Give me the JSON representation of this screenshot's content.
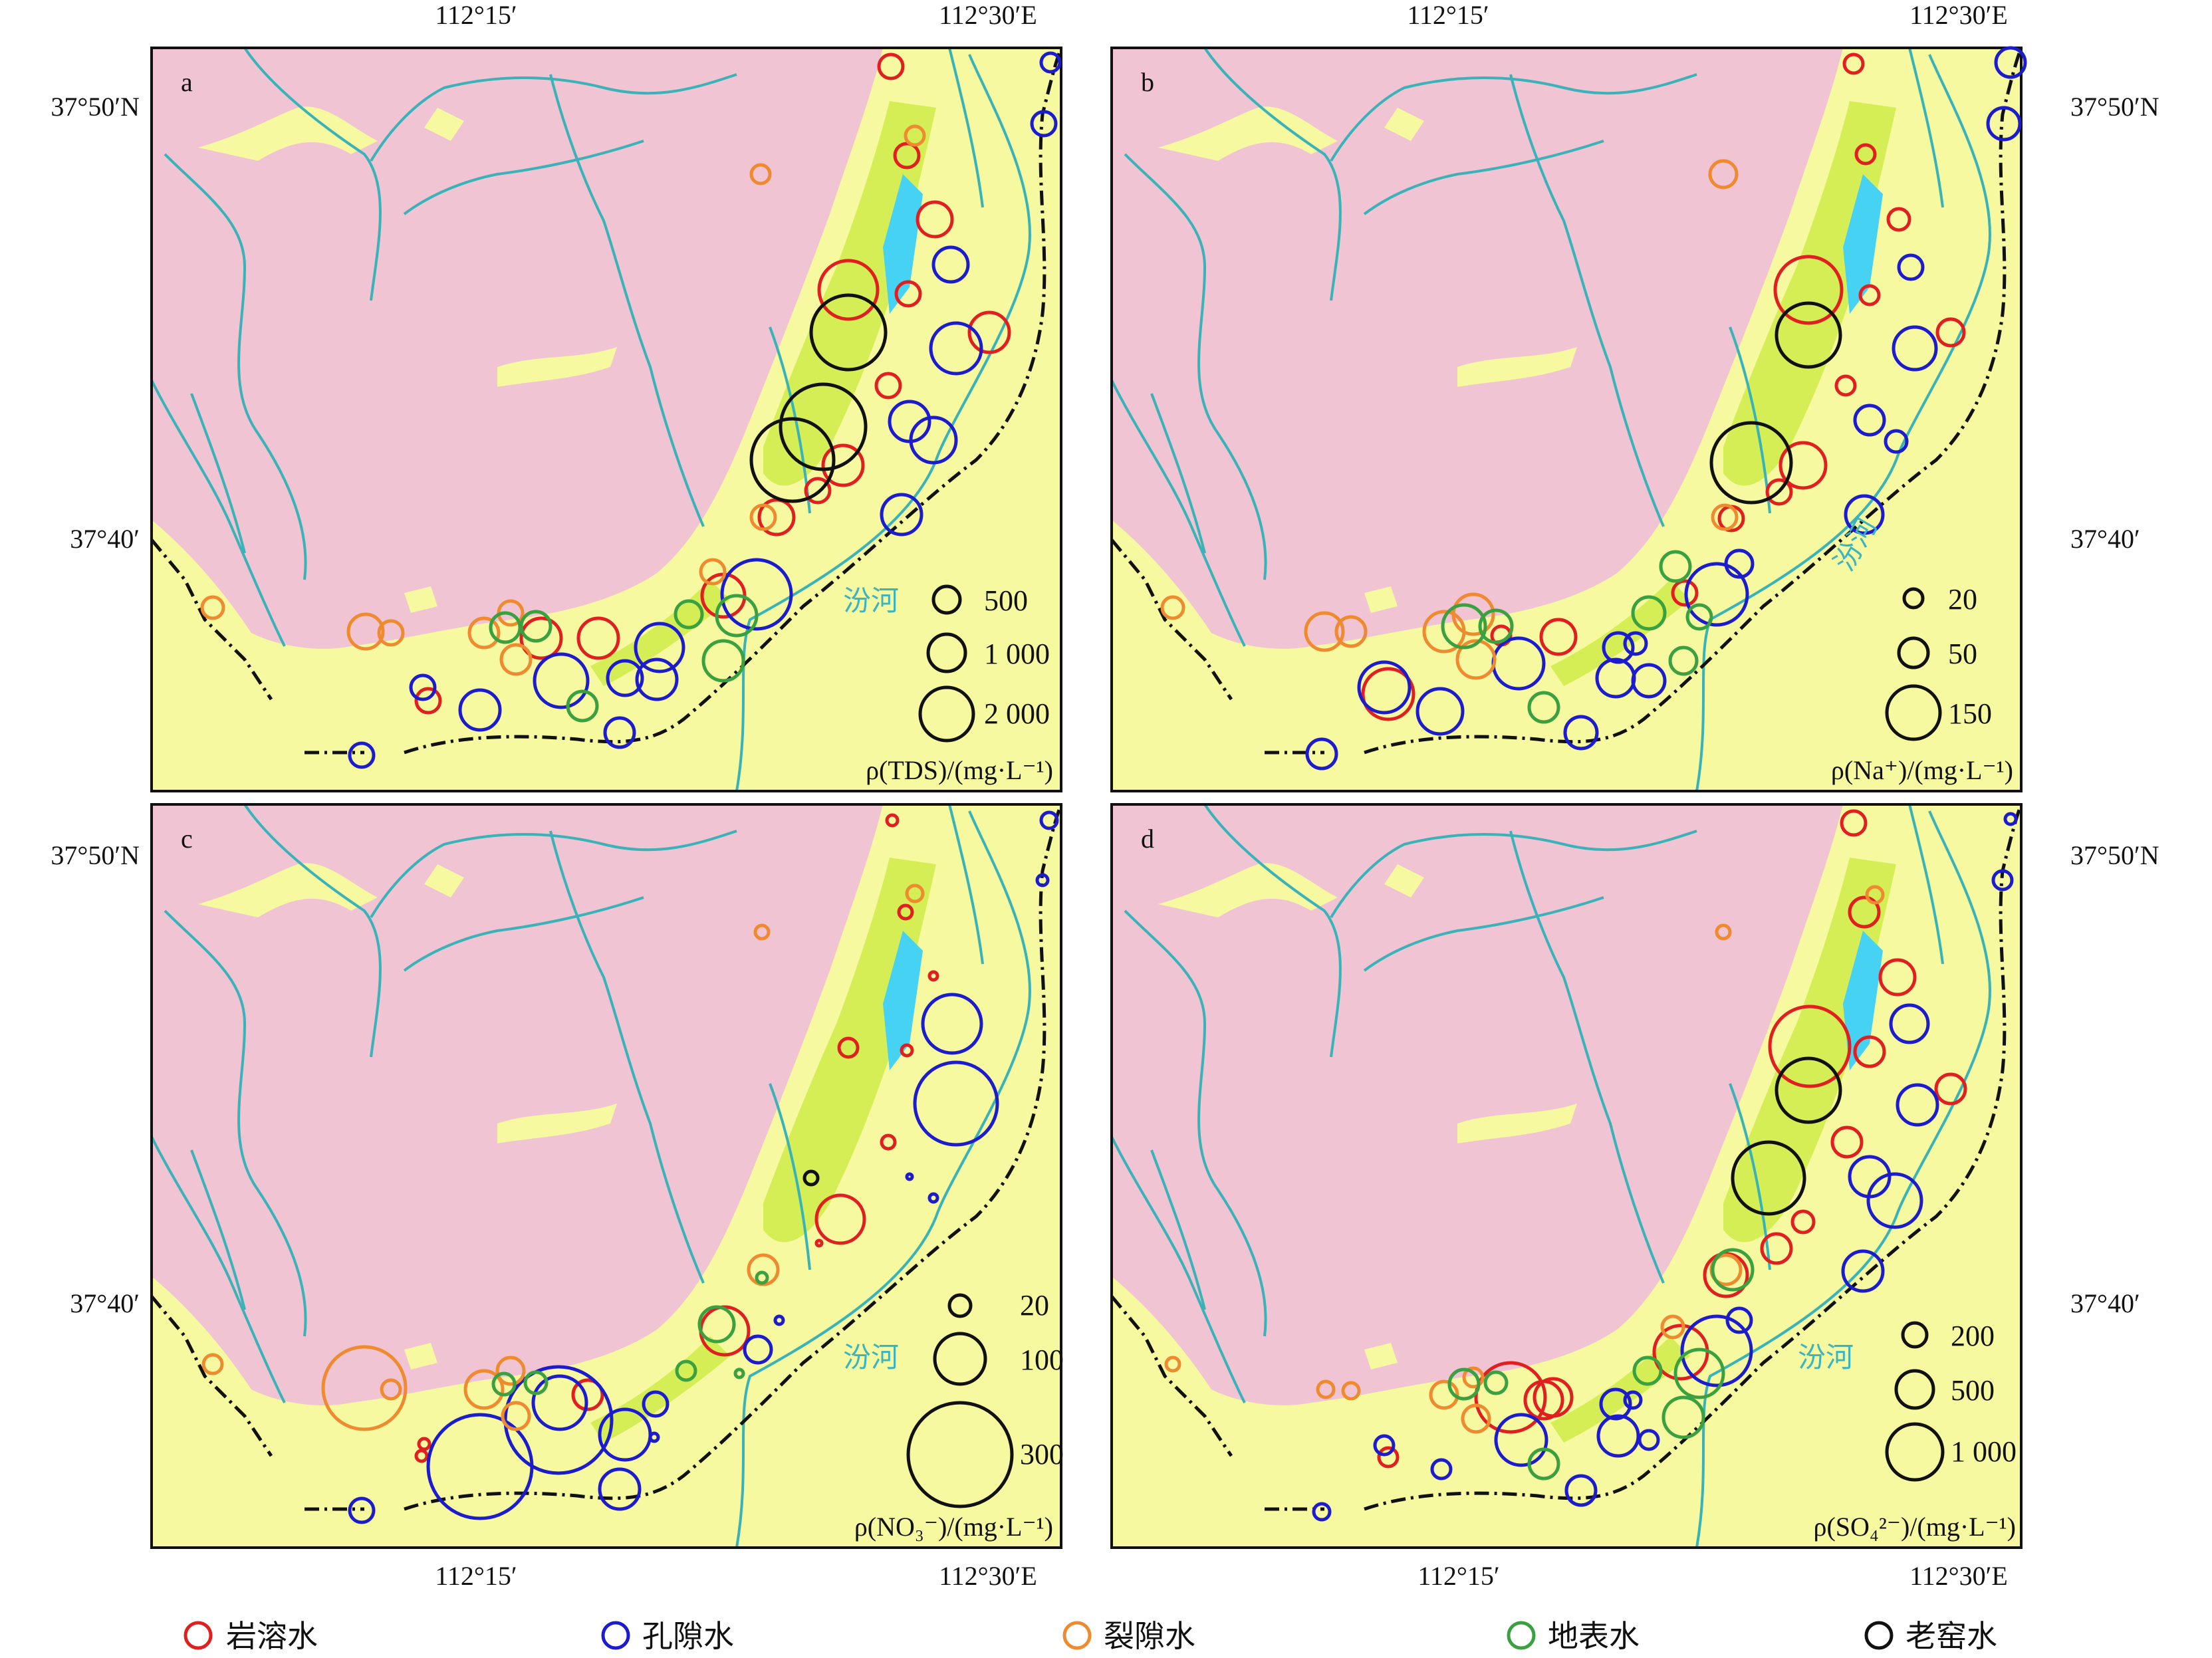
{
  "colors": {
    "bedrock": "#f0c4d2",
    "loess": "#f6f9a0",
    "green_zone": "#d6ee55",
    "reservoir": "#46d2f2",
    "river": "#39b2b8",
    "frame": "#111111",
    "karst": "#e02020",
    "pore": "#1c1ccc",
    "fissure": "#ee8a30",
    "surface": "#3aa040",
    "mine": "#111111"
  },
  "coords": {
    "x_left": "112°15′",
    "x_right_top": "112°30′E",
    "x_right_bottom": "112°30′E",
    "y_top": "37°50′N",
    "y_mid": "37°40′"
  },
  "river_name": "汾河",
  "panels": [
    {
      "label": "a",
      "title": "TDS",
      "unit": "ρ(TDS)/(mg·L⁻¹)",
      "scale_values": [
        "500",
        "1 000",
        "2 000"
      ],
      "river_label_shown": true
    },
    {
      "label": "b",
      "title": "Na+",
      "unit": "ρ(Na⁺)/(mg·L⁻¹)",
      "scale_values": [
        "20",
        "50",
        "150"
      ],
      "river_label_shown": true
    },
    {
      "label": "c",
      "title": "NO3-",
      "unit": "ρ(NO₃⁻)/(mg·L⁻¹)",
      "scale_values": [
        "20",
        "100",
        "300"
      ],
      "river_label_shown": true
    },
    {
      "label": "d",
      "title": "SO42-",
      "unit": "ρ(SO₄²⁻)/(mg·L⁻¹)",
      "scale_values": [
        "200",
        "500",
        "1 000"
      ],
      "river_label_shown": true
    }
  ],
  "legend": [
    {
      "label": "岩溶水",
      "color_key": "karst"
    },
    {
      "label": "孔隙水",
      "color_key": "pore"
    },
    {
      "label": "裂隙水",
      "color_key": "fissure"
    },
    {
      "label": "地表水",
      "color_key": "surface"
    },
    {
      "label": "老窑水",
      "color_key": "mine"
    }
  ]
}
